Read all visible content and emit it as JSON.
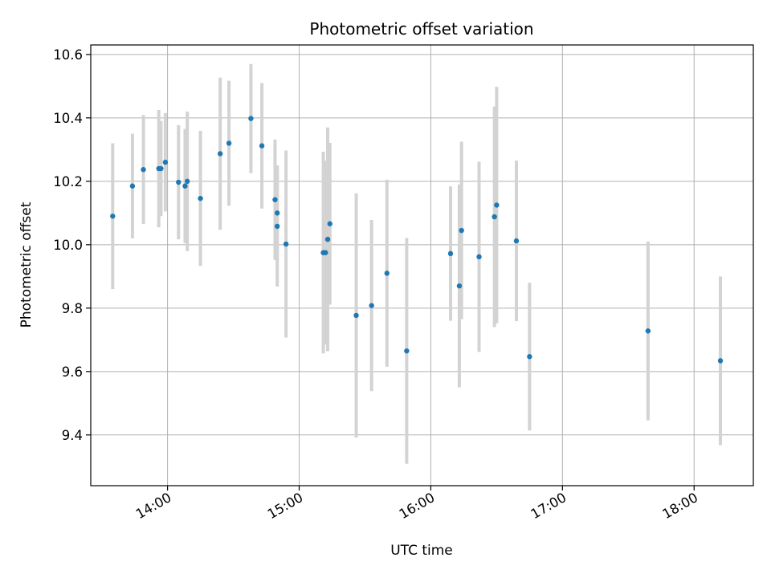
{
  "chart_data": {
    "type": "scatter",
    "title": "Photometric offset variation",
    "xlabel": "UTC time",
    "ylabel": "Photometric offset",
    "x_unit": "hours UTC",
    "xlim": [
      "13:25",
      "18:27"
    ],
    "ylim": [
      9.24,
      10.63
    ],
    "x_ticks": [
      "14:00",
      "15:00",
      "16:00",
      "17:00",
      "18:00"
    ],
    "y_ticks": [
      9.4,
      9.6,
      9.8,
      10.0,
      10.2,
      10.4,
      10.6
    ],
    "y_tick_labels": [
      "9.4",
      "9.6",
      "9.8",
      "10.0",
      "10.2",
      "10.4",
      "10.6"
    ],
    "grid": true,
    "legend": "none",
    "colors": {
      "point": "#1f77b4",
      "errorbar": "#d3d3d3",
      "grid": "#b0b0b0"
    },
    "points": [
      {
        "x": "13:35",
        "y": 10.09,
        "yerr": 0.23
      },
      {
        "x": "13:44",
        "y": 10.185,
        "yerr": 0.165
      },
      {
        "x": "13:49",
        "y": 10.237,
        "yerr": 0.172
      },
      {
        "x": "13:56",
        "y": 10.24,
        "yerr": 0.185
      },
      {
        "x": "13:57",
        "y": 10.24,
        "yerr": 0.15
      },
      {
        "x": "13:59",
        "y": 10.26,
        "yerr": 0.155
      },
      {
        "x": "14:05",
        "y": 10.197,
        "yerr": 0.18
      },
      {
        "x": "14:08",
        "y": 10.185,
        "yerr": 0.18
      },
      {
        "x": "14:09",
        "y": 10.2,
        "yerr": 0.22
      },
      {
        "x": "14:15",
        "y": 10.146,
        "yerr": 0.213
      },
      {
        "x": "14:24",
        "y": 10.287,
        "yerr": 0.24
      },
      {
        "x": "14:28",
        "y": 10.32,
        "yerr": 0.197
      },
      {
        "x": "14:38",
        "y": 10.398,
        "yerr": 0.172
      },
      {
        "x": "14:43",
        "y": 10.312,
        "yerr": 0.198
      },
      {
        "x": "14:49",
        "y": 10.142,
        "yerr": 0.19
      },
      {
        "x": "14:50",
        "y": 10.058,
        "yerr": 0.19
      },
      {
        "x": "14:50",
        "y": 10.1,
        "yerr": 0.15
      },
      {
        "x": "14:54",
        "y": 10.002,
        "yerr": 0.295
      },
      {
        "x": "15:11",
        "y": 9.975,
        "yerr": 0.318
      },
      {
        "x": "15:12",
        "y": 9.975,
        "yerr": 0.29
      },
      {
        "x": "15:13",
        "y": 10.017,
        "yerr": 0.353
      },
      {
        "x": "15:14",
        "y": 10.066,
        "yerr": 0.255
      },
      {
        "x": "15:26",
        "y": 9.777,
        "yerr": 0.385
      },
      {
        "x": "15:33",
        "y": 9.808,
        "yerr": 0.27
      },
      {
        "x": "15:40",
        "y": 9.91,
        "yerr": 0.295
      },
      {
        "x": "15:49",
        "y": 9.665,
        "yerr": 0.356
      },
      {
        "x": "16:09",
        "y": 9.972,
        "yerr": 0.212
      },
      {
        "x": "16:13",
        "y": 9.87,
        "yerr": 0.32
      },
      {
        "x": "16:14",
        "y": 10.045,
        "yerr": 0.28
      },
      {
        "x": "16:22",
        "y": 9.962,
        "yerr": 0.3
      },
      {
        "x": "16:29",
        "y": 10.088,
        "yerr": 0.348
      },
      {
        "x": "16:30",
        "y": 10.125,
        "yerr": 0.373
      },
      {
        "x": "16:39",
        "y": 10.012,
        "yerr": 0.253
      },
      {
        "x": "16:45",
        "y": 9.647,
        "yerr": 0.233
      },
      {
        "x": "17:39",
        "y": 9.728,
        "yerr": 0.282
      },
      {
        "x": "18:12",
        "y": 9.634,
        "yerr": 0.266
      }
    ]
  }
}
